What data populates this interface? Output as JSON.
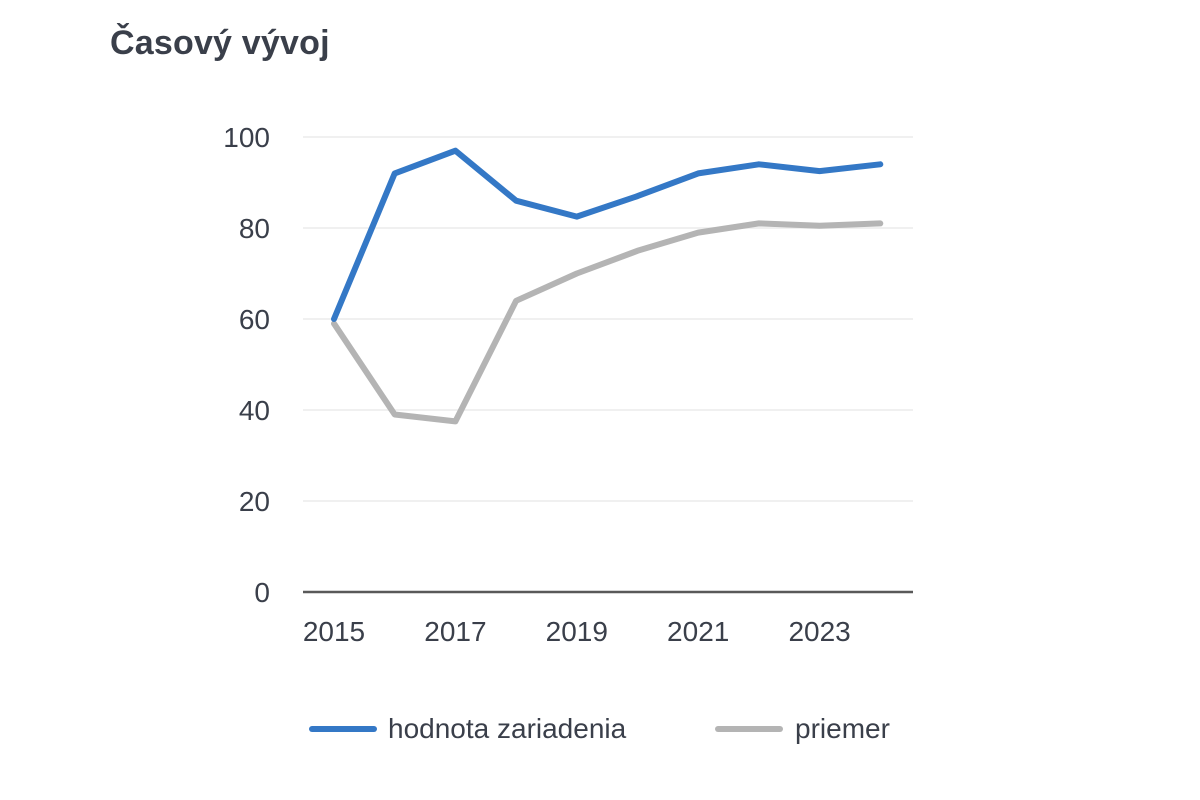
{
  "chart_data": {
    "type": "line",
    "title": "Časový vývoj",
    "xlabel": "",
    "ylabel": "",
    "x": [
      2015,
      2016,
      2017,
      2018,
      2019,
      2020,
      2021,
      2022,
      2023,
      2024
    ],
    "x_ticks": [
      "2015",
      "2017",
      "2019",
      "2021",
      "2023"
    ],
    "y_ticks": [
      "0",
      "20",
      "40",
      "60",
      "80",
      "100"
    ],
    "ylim": [
      0,
      100
    ],
    "xlim": [
      2015,
      2025
    ],
    "grid": true,
    "legend_position": "bottom",
    "series": [
      {
        "name": "hodnota zariadenia",
        "color": "#3478c6",
        "values": [
          60,
          92,
          97,
          86,
          82.5,
          87,
          92,
          94,
          92.5,
          94
        ]
      },
      {
        "name": "priemer",
        "color": "#b4b4b4",
        "values": [
          59,
          39,
          37.5,
          64,
          70,
          75,
          79,
          81,
          80.5,
          81
        ]
      }
    ]
  }
}
